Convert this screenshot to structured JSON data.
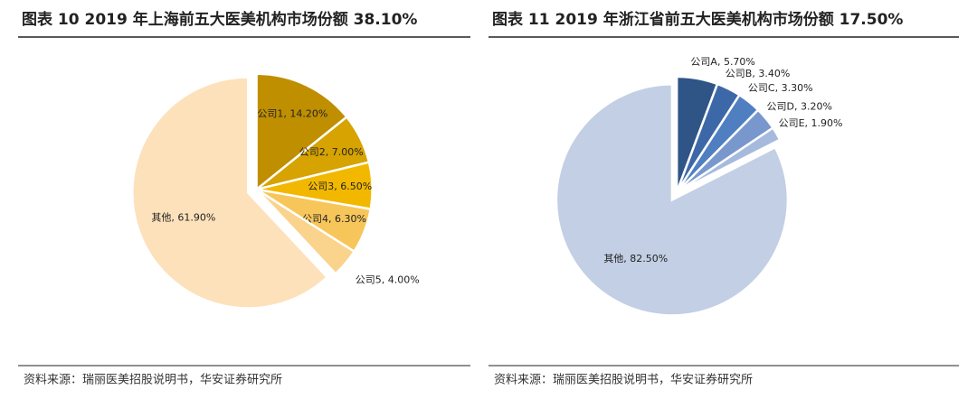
{
  "chart_data": [
    {
      "type": "pie",
      "title": "图表 10 2019 年上海前五大医美机构市场份额 38.10%",
      "values": [
        14.2,
        7.0,
        6.5,
        6.3,
        4.0,
        61.9
      ],
      "value_labels": [
        "公司1, 14.20%",
        "公司2, 7.00%",
        "公司3, 6.50%",
        "公司4, 6.30%",
        "公司5, 4.00%",
        "其他, 61.90%"
      ],
      "colors": [
        "#bf8f00",
        "#d6a300",
        "#f2b800",
        "#f7c65a",
        "#fad38c",
        "#fde1bb"
      ],
      "source": "资料来源：瑞丽医美招股说明书，华安证券研究所"
    },
    {
      "type": "pie",
      "title": "图表 11 2019 年浙江省前五大医美机构市场份额 17.50%",
      "values": [
        5.7,
        3.4,
        3.3,
        3.2,
        1.9,
        82.5
      ],
      "value_labels": [
        "公司A, 5.70%",
        "公司B, 3.40%",
        "公司C, 3.30%",
        "公司D, 3.20%",
        "公司E, 1.90%",
        "其他, 82.50%"
      ],
      "colors": [
        "#2f5587",
        "#3d68a8",
        "#4f7fc1",
        "#7898cd",
        "#a6badd",
        "#c2cfe4"
      ],
      "source": "资料来源：瑞丽医美招股说明书，华安证券研究所"
    }
  ]
}
